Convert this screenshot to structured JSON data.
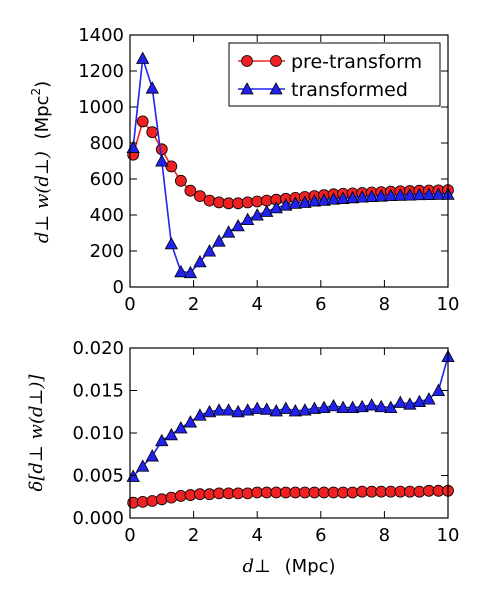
{
  "chart_data": [
    {
      "type": "line",
      "xlim": [
        0,
        10
      ],
      "ylim": [
        0,
        1400
      ],
      "xticks": [
        "0",
        "2",
        "4",
        "6",
        "8",
        "10"
      ],
      "yticks": [
        "0",
        "200",
        "400",
        "600",
        "800",
        "1000",
        "1200",
        "1400"
      ],
      "ylabel_math": "d⊥ w(d⊥)",
      "ylabel_unit": "(Mpc",
      "ylabel_unit_sup": "2",
      "ylabel_unit_close": ")",
      "legend_position": "top-right",
      "grid": false,
      "series": [
        {
          "name": "pre-transform",
          "color": "#ee2222",
          "marker": "circle",
          "x": [
            0.1,
            0.4,
            0.7,
            1.0,
            1.3,
            1.6,
            1.9,
            2.2,
            2.5,
            2.8,
            3.1,
            3.4,
            3.7,
            4.0,
            4.3,
            4.6,
            4.9,
            5.2,
            5.5,
            5.8,
            6.1,
            6.4,
            6.7,
            7.0,
            7.3,
            7.6,
            7.9,
            8.2,
            8.5,
            8.8,
            9.1,
            9.4,
            9.7,
            10.0
          ],
          "y": [
            735,
            920,
            860,
            765,
            670,
            590,
            535,
            505,
            480,
            470,
            465,
            465,
            470,
            475,
            480,
            485,
            490,
            495,
            500,
            505,
            510,
            515,
            518,
            520,
            522,
            525,
            527,
            530,
            532,
            533,
            535,
            536,
            537,
            538
          ]
        },
        {
          "name": "transformed",
          "color": "#2222ee",
          "marker": "triangle",
          "x": [
            0.1,
            0.4,
            0.7,
            1.0,
            1.3,
            1.6,
            1.9,
            2.2,
            2.5,
            2.8,
            3.1,
            3.4,
            3.7,
            4.0,
            4.3,
            4.6,
            4.9,
            5.2,
            5.5,
            5.8,
            6.1,
            6.4,
            6.7,
            7.0,
            7.3,
            7.6,
            7.9,
            8.2,
            8.5,
            8.8,
            9.1,
            9.4,
            9.7,
            10.0
          ],
          "y": [
            775,
            1270,
            1105,
            700,
            240,
            85,
            80,
            140,
            200,
            255,
            305,
            340,
            375,
            400,
            420,
            440,
            455,
            465,
            470,
            478,
            482,
            488,
            492,
            496,
            500,
            503,
            505,
            508,
            510,
            511,
            513,
            514,
            515,
            515
          ]
        }
      ]
    },
    {
      "type": "line",
      "xlim": [
        0,
        10
      ],
      "ylim": [
        0,
        0.02
      ],
      "xticks": [
        "0",
        "2",
        "4",
        "6",
        "8",
        "10"
      ],
      "yticks": [
        "0.000",
        "0.005",
        "0.010",
        "0.015",
        "0.020"
      ],
      "xlabel_math": "d⊥",
      "xlabel_unit": "(Mpc)",
      "ylabel_math": "δ[d⊥ w(d⊥)]",
      "grid": false,
      "series": [
        {
          "color": "#ee2222",
          "marker": "circle",
          "x": [
            0.1,
            0.4,
            0.7,
            1.0,
            1.3,
            1.6,
            1.9,
            2.2,
            2.5,
            2.8,
            3.1,
            3.4,
            3.7,
            4.0,
            4.3,
            4.6,
            4.9,
            5.2,
            5.5,
            5.8,
            6.1,
            6.4,
            6.7,
            7.0,
            7.3,
            7.6,
            7.9,
            8.2,
            8.5,
            8.8,
            9.1,
            9.4,
            9.7,
            10.0
          ],
          "y": [
            0.0018,
            0.0019,
            0.002,
            0.0022,
            0.0024,
            0.0026,
            0.0027,
            0.0028,
            0.0028,
            0.0029,
            0.0029,
            0.0029,
            0.0029,
            0.003,
            0.003,
            0.003,
            0.003,
            0.003,
            0.003,
            0.003,
            0.003,
            0.003,
            0.003,
            0.003,
            0.0031,
            0.0031,
            0.0031,
            0.0031,
            0.0031,
            0.0031,
            0.0031,
            0.0032,
            0.0032,
            0.0032
          ]
        },
        {
          "color": "#2222ee",
          "marker": "triangle",
          "x": [
            0.1,
            0.4,
            0.7,
            1.0,
            1.3,
            1.6,
            1.9,
            2.2,
            2.5,
            2.8,
            3.1,
            3.4,
            3.7,
            4.0,
            4.3,
            4.6,
            4.9,
            5.2,
            5.5,
            5.8,
            6.1,
            6.4,
            6.7,
            7.0,
            7.3,
            7.6,
            7.9,
            8.2,
            8.5,
            8.8,
            9.1,
            9.4,
            9.7,
            10.0
          ],
          "y": [
            0.0049,
            0.0061,
            0.0073,
            0.0091,
            0.0098,
            0.0106,
            0.0113,
            0.0121,
            0.0125,
            0.0127,
            0.0127,
            0.0125,
            0.0127,
            0.0129,
            0.0128,
            0.0126,
            0.0129,
            0.0126,
            0.0127,
            0.0129,
            0.013,
            0.0132,
            0.013,
            0.013,
            0.0131,
            0.0133,
            0.0131,
            0.013,
            0.0136,
            0.0134,
            0.0137,
            0.014,
            0.015,
            0.019
          ]
        }
      ]
    }
  ]
}
